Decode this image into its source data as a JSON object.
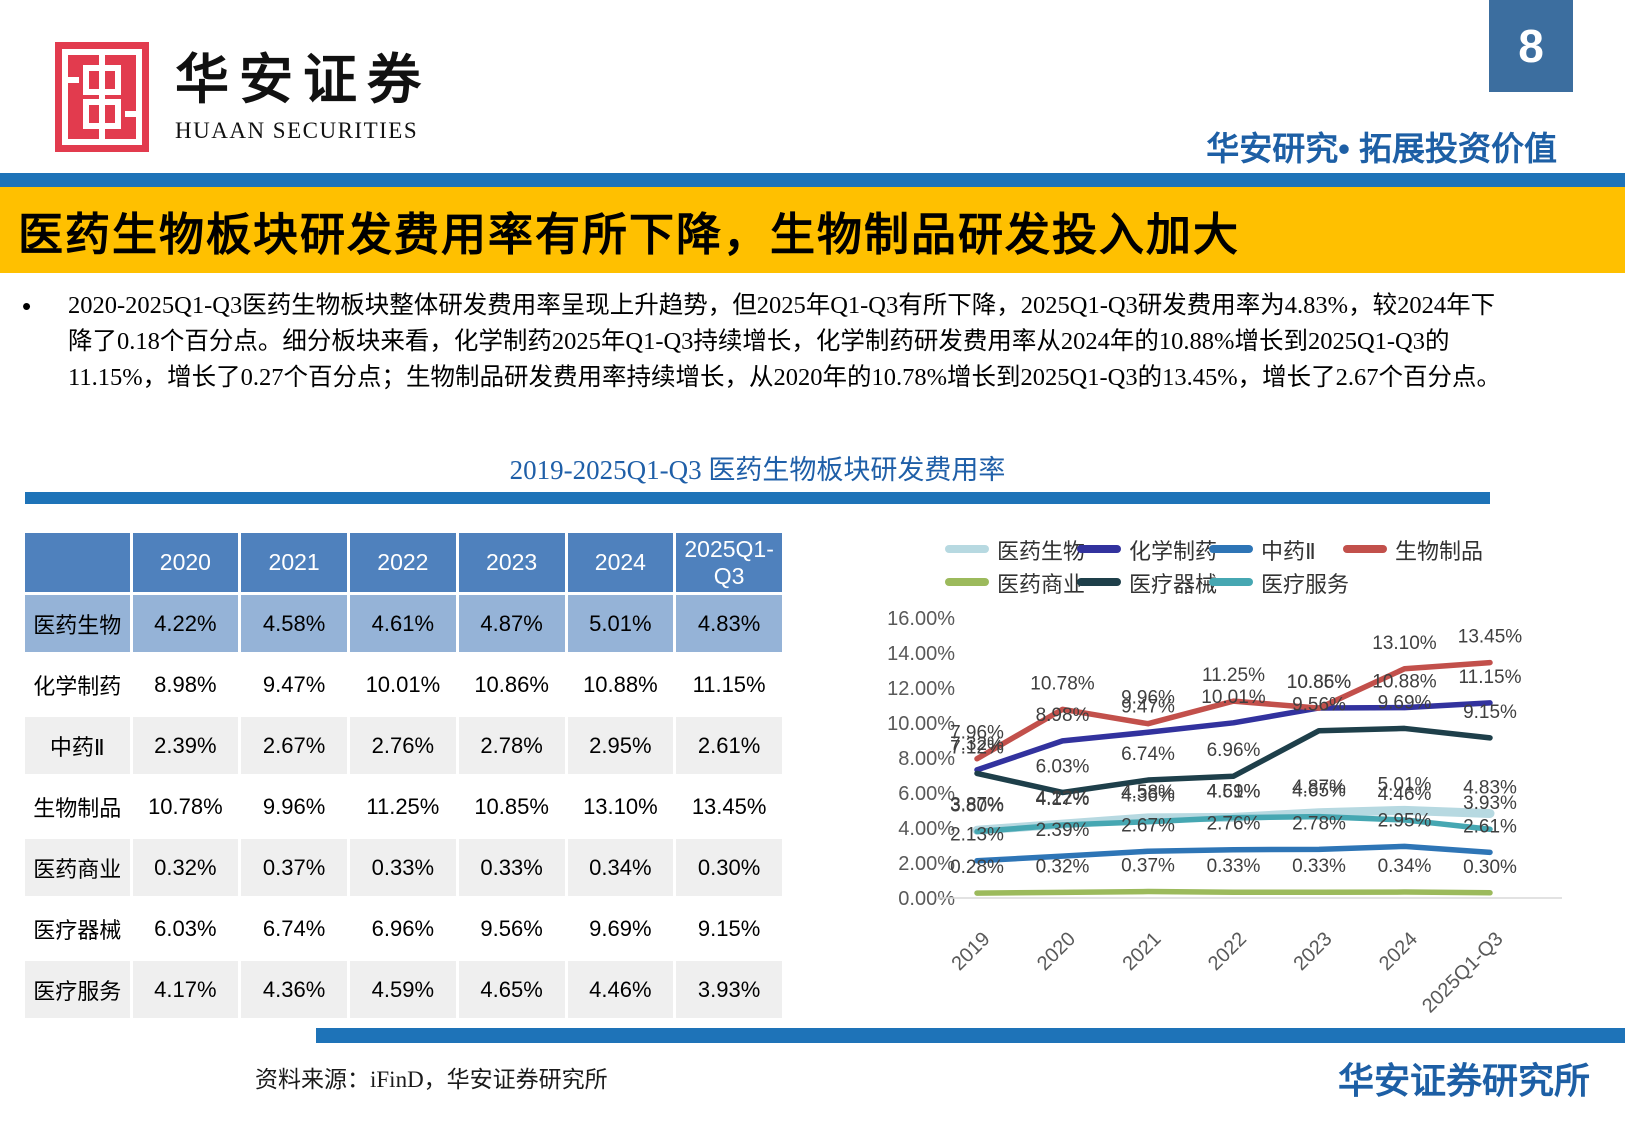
{
  "header": {
    "logo_cn": "华安证券",
    "logo_en": "HUAAN SECURITIES",
    "page_number": "8",
    "tagline": "华安研究• 拓展投资价值",
    "logo_red": "#e23b4e"
  },
  "title_banner": "医药生物板块研发费用率有所下降，生物制品研发投入加大",
  "bullet_marker": "•",
  "bullet_text": "2020-2025Q1-Q3医药生物板块整体研发费用率呈现上升趋势，但2025年Q1-Q3有所下降，2025Q1-Q3研发费用率为4.83%，较2024年下降了0.18个百分点。细分板块来看，化学制药2025年Q1-Q3持续增长，化学制药研发费用率从2024年的10.88%增长到2025Q1-Q3的11.15%，增长了0.27个百分点；生物制品研发费用率持续增长，从2020年的10.78%增长到2025Q1-Q3的13.45%，增长了2.67个百分点。",
  "chart_title": "2019-2025Q1-Q3 医药生物板块研发费用率",
  "table": {
    "columns": [
      "",
      "2020",
      "2021",
      "2022",
      "2023",
      "2024",
      "2025Q1-Q3"
    ],
    "rows": [
      {
        "label": "医药生物",
        "values": [
          "4.22%",
          "4.58%",
          "4.61%",
          "4.87%",
          "5.01%",
          "4.83%"
        ]
      },
      {
        "label": "化学制药",
        "values": [
          "8.98%",
          "9.47%",
          "10.01%",
          "10.86%",
          "10.88%",
          "11.15%"
        ]
      },
      {
        "label": "中药Ⅱ",
        "values": [
          "2.39%",
          "2.67%",
          "2.76%",
          "2.78%",
          "2.95%",
          "2.61%"
        ]
      },
      {
        "label": "生物制品",
        "values": [
          "10.78%",
          "9.96%",
          "11.25%",
          "10.85%",
          "13.10%",
          "13.45%"
        ]
      },
      {
        "label": "医药商业",
        "values": [
          "0.32%",
          "0.37%",
          "0.33%",
          "0.33%",
          "0.34%",
          "0.30%"
        ]
      },
      {
        "label": "医疗器械",
        "values": [
          "6.03%",
          "6.74%",
          "6.96%",
          "9.56%",
          "9.69%",
          "9.15%"
        ]
      },
      {
        "label": "医疗服务",
        "values": [
          "4.17%",
          "4.36%",
          "4.59%",
          "4.65%",
          "4.46%",
          "3.93%"
        ]
      }
    ]
  },
  "chart_data": {
    "type": "line",
    "title": "2019-2025Q1-Q3 医药生物板块研发费用率",
    "x": [
      "2019",
      "2020",
      "2021",
      "2022",
      "2023",
      "2024",
      "2025Q1-Q3"
    ],
    "series": [
      {
        "name": "医药生物",
        "color": "#b7d9e1",
        "width": 9,
        "values": [
          3.87,
          4.22,
          4.58,
          4.61,
          4.87,
          5.01,
          4.83
        ]
      },
      {
        "name": "化学制药",
        "color": "#32329e",
        "width": 5.5,
        "values": [
          7.32,
          8.98,
          9.47,
          10.01,
          10.86,
          10.88,
          11.15
        ]
      },
      {
        "name": "中药Ⅱ",
        "color": "#2e75b6",
        "width": 5.5,
        "values": [
          2.13,
          2.39,
          2.67,
          2.76,
          2.78,
          2.95,
          2.61
        ]
      },
      {
        "name": "生物制品",
        "color": "#c2504b",
        "width": 5.5,
        "values": [
          7.96,
          10.78,
          9.96,
          11.25,
          10.85,
          13.1,
          13.45
        ]
      },
      {
        "name": "医药商业",
        "color": "#9cba5c",
        "width": 5.5,
        "values": [
          0.28,
          0.32,
          0.37,
          0.33,
          0.33,
          0.34,
          0.3
        ]
      },
      {
        "name": "医疗器械",
        "color": "#1e3f4a",
        "width": 5.5,
        "values": [
          7.12,
          6.03,
          6.74,
          6.96,
          9.56,
          9.69,
          9.15
        ]
      },
      {
        "name": "医疗服务",
        "color": "#46a7b2",
        "width": 5.5,
        "values": [
          3.8,
          4.17,
          4.36,
          4.59,
          4.65,
          4.46,
          3.93
        ]
      }
    ],
    "ylim": [
      0,
      16
    ],
    "ytick_step": 2,
    "yticks": [
      "0.00%",
      "2.00%",
      "4.00%",
      "6.00%",
      "8.00%",
      "10.00%",
      "12.00%",
      "14.00%",
      "16.00%"
    ],
    "legend_position": "top",
    "gridlines": false,
    "data_labels": true
  },
  "footer": {
    "source": "资料来源：iFinD，华安证券研究所",
    "institute": "华安证券研究所"
  }
}
